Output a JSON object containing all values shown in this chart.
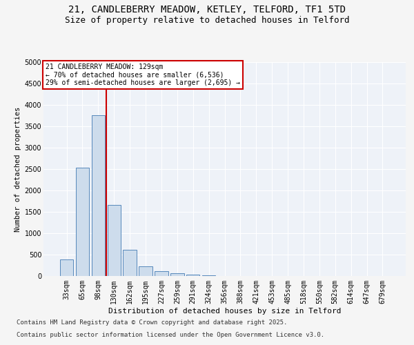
{
  "title1": "21, CANDLEBERRY MEADOW, KETLEY, TELFORD, TF1 5TD",
  "title2": "Size of property relative to detached houses in Telford",
  "xlabel": "Distribution of detached houses by size in Telford",
  "ylabel": "Number of detached properties",
  "categories": [
    "33sqm",
    "65sqm",
    "98sqm",
    "130sqm",
    "162sqm",
    "195sqm",
    "227sqm",
    "259sqm",
    "291sqm",
    "324sqm",
    "356sqm",
    "388sqm",
    "421sqm",
    "453sqm",
    "485sqm",
    "518sqm",
    "550sqm",
    "582sqm",
    "614sqm",
    "647sqm",
    "679sqm"
  ],
  "values": [
    380,
    2540,
    3760,
    1660,
    620,
    230,
    105,
    60,
    40,
    10,
    4,
    2,
    1,
    1,
    0,
    0,
    0,
    0,
    0,
    0,
    0
  ],
  "bar_color": "#cddcec",
  "bar_edge_color": "#5588bb",
  "marker_line_index": 3,
  "annotation_line1": "21 CANDLEBERRY MEADOW: 129sqm",
  "annotation_line2": "← 70% of detached houses are smaller (6,536)",
  "annotation_line3": "29% of semi-detached houses are larger (2,695) →",
  "marker_color": "#cc0000",
  "annotation_box_edgecolor": "#cc0000",
  "ylim": [
    0,
    5000
  ],
  "yticks": [
    0,
    500,
    1000,
    1500,
    2000,
    2500,
    3000,
    3500,
    4000,
    4500,
    5000
  ],
  "footer1": "Contains HM Land Registry data © Crown copyright and database right 2025.",
  "footer2": "Contains public sector information licensed under the Open Government Licence v3.0.",
  "bg_color": "#eef2f8",
  "grid_color": "#ffffff",
  "fig_bg_color": "#f5f5f5",
  "title1_fontsize": 10,
  "title2_fontsize": 9,
  "xlabel_fontsize": 8,
  "ylabel_fontsize": 7.5,
  "tick_fontsize": 7,
  "annot_fontsize": 7,
  "footer_fontsize": 6.5
}
